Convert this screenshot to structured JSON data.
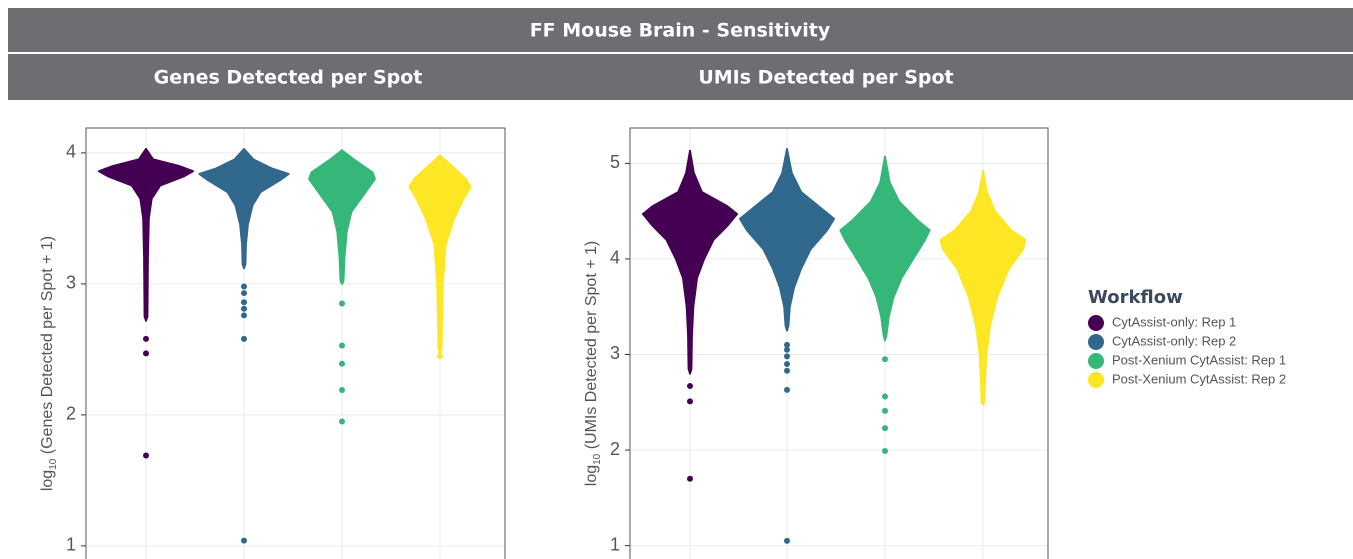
{
  "header": {
    "title": "FF Mouse Brain - Sensitivity"
  },
  "legend": {
    "title": "Workflow",
    "items": [
      {
        "name": "CytAssist-only: Rep 1",
        "color": "#440154"
      },
      {
        "name": "CytAssist-only: Rep 2",
        "color": "#31688e"
      },
      {
        "name": "Post-Xenium CytAssist: Rep 1",
        "color": "#35b779"
      },
      {
        "name": "Post-Xenium CytAssist: Rep 2",
        "color": "#fde725"
      }
    ]
  },
  "chart_data": [
    {
      "type": "violin",
      "title": "Genes Detected per Spot",
      "ylabel": {
        "base": "log",
        "sub": "10",
        "text": " (Genes Detected per Spot + 1)"
      },
      "ylim": [
        0.9,
        4.19
      ],
      "yticks": [
        1,
        2,
        3,
        4
      ],
      "grid": true,
      "series": [
        {
          "y": [
            4.03,
            3.95,
            3.9,
            3.86,
            3.82,
            3.75,
            3.65,
            3.5,
            3.2,
            2.75,
            2.72
          ],
          "density": [
            0,
            0.15,
            0.7,
            1.0,
            0.8,
            0.3,
            0.12,
            0.06,
            0.04,
            0.03,
            0
          ],
          "outliers": [
            2.58,
            2.47,
            1.69
          ]
        },
        {
          "y": [
            4.03,
            3.95,
            3.88,
            3.84,
            3.8,
            3.7,
            3.6,
            3.45,
            3.3,
            3.15,
            3.12
          ],
          "density": [
            0,
            0.2,
            0.6,
            0.95,
            0.8,
            0.35,
            0.18,
            0.08,
            0.04,
            0.03,
            0
          ],
          "outliers": [
            2.98,
            2.93,
            2.86,
            2.81,
            2.76,
            2.58,
            1.04
          ]
        },
        {
          "y": [
            4.02,
            3.95,
            3.85,
            3.8,
            3.7,
            3.55,
            3.4,
            3.2,
            3.02,
            3.0
          ],
          "density": [
            0,
            0.25,
            0.65,
            0.7,
            0.5,
            0.2,
            0.1,
            0.05,
            0.03,
            0
          ],
          "outliers": [
            2.85,
            2.53,
            2.39,
            2.19,
            1.95
          ]
        },
        {
          "y": [
            3.98,
            3.9,
            3.8,
            3.74,
            3.65,
            3.5,
            3.3,
            3.0,
            2.7,
            2.5,
            2.47
          ],
          "density": [
            0,
            0.25,
            0.55,
            0.65,
            0.5,
            0.3,
            0.12,
            0.06,
            0.04,
            0.03,
            0
          ],
          "outliers": [
            2.45
          ]
        }
      ]
    },
    {
      "type": "violin",
      "title": "UMIs Detected per Spot",
      "ylabel": {
        "base": "log",
        "sub": "10",
        "text": " (UMIs Detected per Spot + 1)"
      },
      "ylim": [
        0.86,
        5.37
      ],
      "yticks": [
        1,
        2,
        3,
        4,
        5
      ],
      "grid": true,
      "series": [
        {
          "y": [
            5.13,
            4.9,
            4.7,
            4.55,
            4.47,
            4.35,
            4.2,
            4.0,
            3.8,
            3.5,
            3.2,
            2.85,
            2.8
          ],
          "density": [
            0,
            0.08,
            0.25,
            0.8,
            1.0,
            0.8,
            0.5,
            0.3,
            0.15,
            0.07,
            0.04,
            0.03,
            0
          ],
          "outliers": [
            2.67,
            2.51,
            1.7
          ]
        },
        {
          "y": [
            5.15,
            4.9,
            4.7,
            4.5,
            4.42,
            4.3,
            4.1,
            3.9,
            3.7,
            3.5,
            3.3,
            3.25
          ],
          "density": [
            0,
            0.1,
            0.3,
            0.8,
            1.0,
            0.85,
            0.5,
            0.3,
            0.15,
            0.06,
            0.03,
            0
          ],
          "outliers": [
            3.1,
            3.05,
            2.98,
            2.9,
            2.83,
            2.63,
            1.05
          ]
        },
        {
          "y": [
            5.07,
            4.8,
            4.6,
            4.4,
            4.3,
            4.2,
            4.0,
            3.8,
            3.6,
            3.4,
            3.2,
            3.15
          ],
          "density": [
            0,
            0.1,
            0.3,
            0.7,
            0.95,
            0.85,
            0.6,
            0.35,
            0.18,
            0.08,
            0.03,
            0
          ],
          "outliers": [
            2.95,
            2.56,
            2.41,
            2.23,
            1.99
          ]
        },
        {
          "y": [
            4.92,
            4.7,
            4.5,
            4.3,
            4.2,
            4.1,
            3.9,
            3.6,
            3.3,
            3.0,
            2.7,
            2.5,
            2.48
          ],
          "density": [
            0,
            0.08,
            0.25,
            0.6,
            0.9,
            0.85,
            0.55,
            0.3,
            0.15,
            0.07,
            0.04,
            0.03,
            0
          ],
          "outliers": []
        }
      ]
    }
  ]
}
